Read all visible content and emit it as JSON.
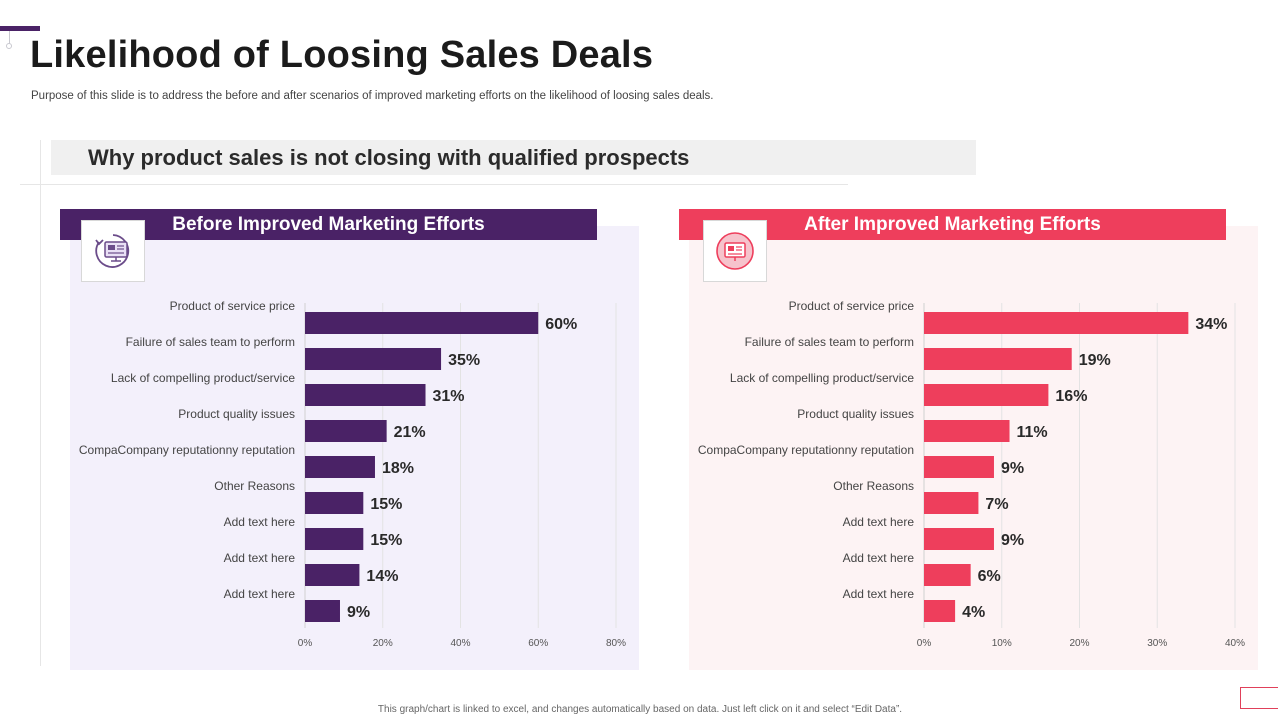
{
  "page": {
    "title": "Likelihood of Loosing Sales Deals",
    "subtitle": "Purpose of this slide is to address the before and after scenarios of improved marketing efforts on the likelihood of loosing sales deals.",
    "section_title": "Why product sales is not closing with qualified prospects",
    "footnote": "This graph/chart is linked to excel, and changes automatically based on data. Just left click on it and select “Edit Data”."
  },
  "colors": {
    "before_accent": "#4a2266",
    "before_bg": "#f3f0fb",
    "after_accent": "#ee3e5c",
    "after_bg": "#fdf3f4"
  },
  "panels": {
    "before": {
      "header": "Before Improved Marketing Efforts",
      "icon": "computer-marketing-icon"
    },
    "after": {
      "header": "After Improved Marketing Efforts",
      "icon": "marketing-board-icon"
    }
  },
  "chart_data": [
    {
      "type": "bar",
      "orientation": "horizontal",
      "title": "Before Improved Marketing Efforts",
      "categories": [
        "Product  of service price",
        "Failure of sales team to perform",
        "Lack of compelling product/service",
        "Product quality issues",
        "CompaCompany reputationny reputation",
        "Other Reasons",
        "Add text here",
        "Add text here",
        "Add text here"
      ],
      "values": [
        60,
        35,
        31,
        21,
        18,
        15,
        15,
        14,
        9
      ],
      "value_labels": [
        "60%",
        "35%",
        "31%",
        "21%",
        "18%",
        "15%",
        "15%",
        "14%",
        "9%"
      ],
      "xlim": [
        0,
        80
      ],
      "ticks": [
        0,
        20,
        40,
        60,
        80
      ],
      "tick_labels": [
        "0%",
        "20%",
        "40%",
        "60%",
        "80%"
      ],
      "color": "#4a2266",
      "grid": true
    },
    {
      "type": "bar",
      "orientation": "horizontal",
      "title": "After Improved Marketing Efforts",
      "categories": [
        "Product  of service price",
        "Failure of sales team to perform",
        "Lack of compelling product/service",
        "Product quality issues",
        "CompaCompany reputationny reputation",
        "Other Reasons",
        "Add text here",
        "Add text here",
        "Add text here"
      ],
      "values": [
        34,
        19,
        16,
        11,
        9,
        7,
        9,
        6,
        4
      ],
      "value_labels": [
        "34%",
        "19%",
        "16%",
        "11%",
        "9%",
        "7%",
        "9%",
        "6%",
        "4%"
      ],
      "xlim": [
        0,
        40
      ],
      "ticks": [
        0,
        10,
        20,
        30,
        40
      ],
      "tick_labels": [
        "0%",
        "10%",
        "20%",
        "30%",
        "40%"
      ],
      "color": "#ee3e5c",
      "grid": true
    }
  ]
}
